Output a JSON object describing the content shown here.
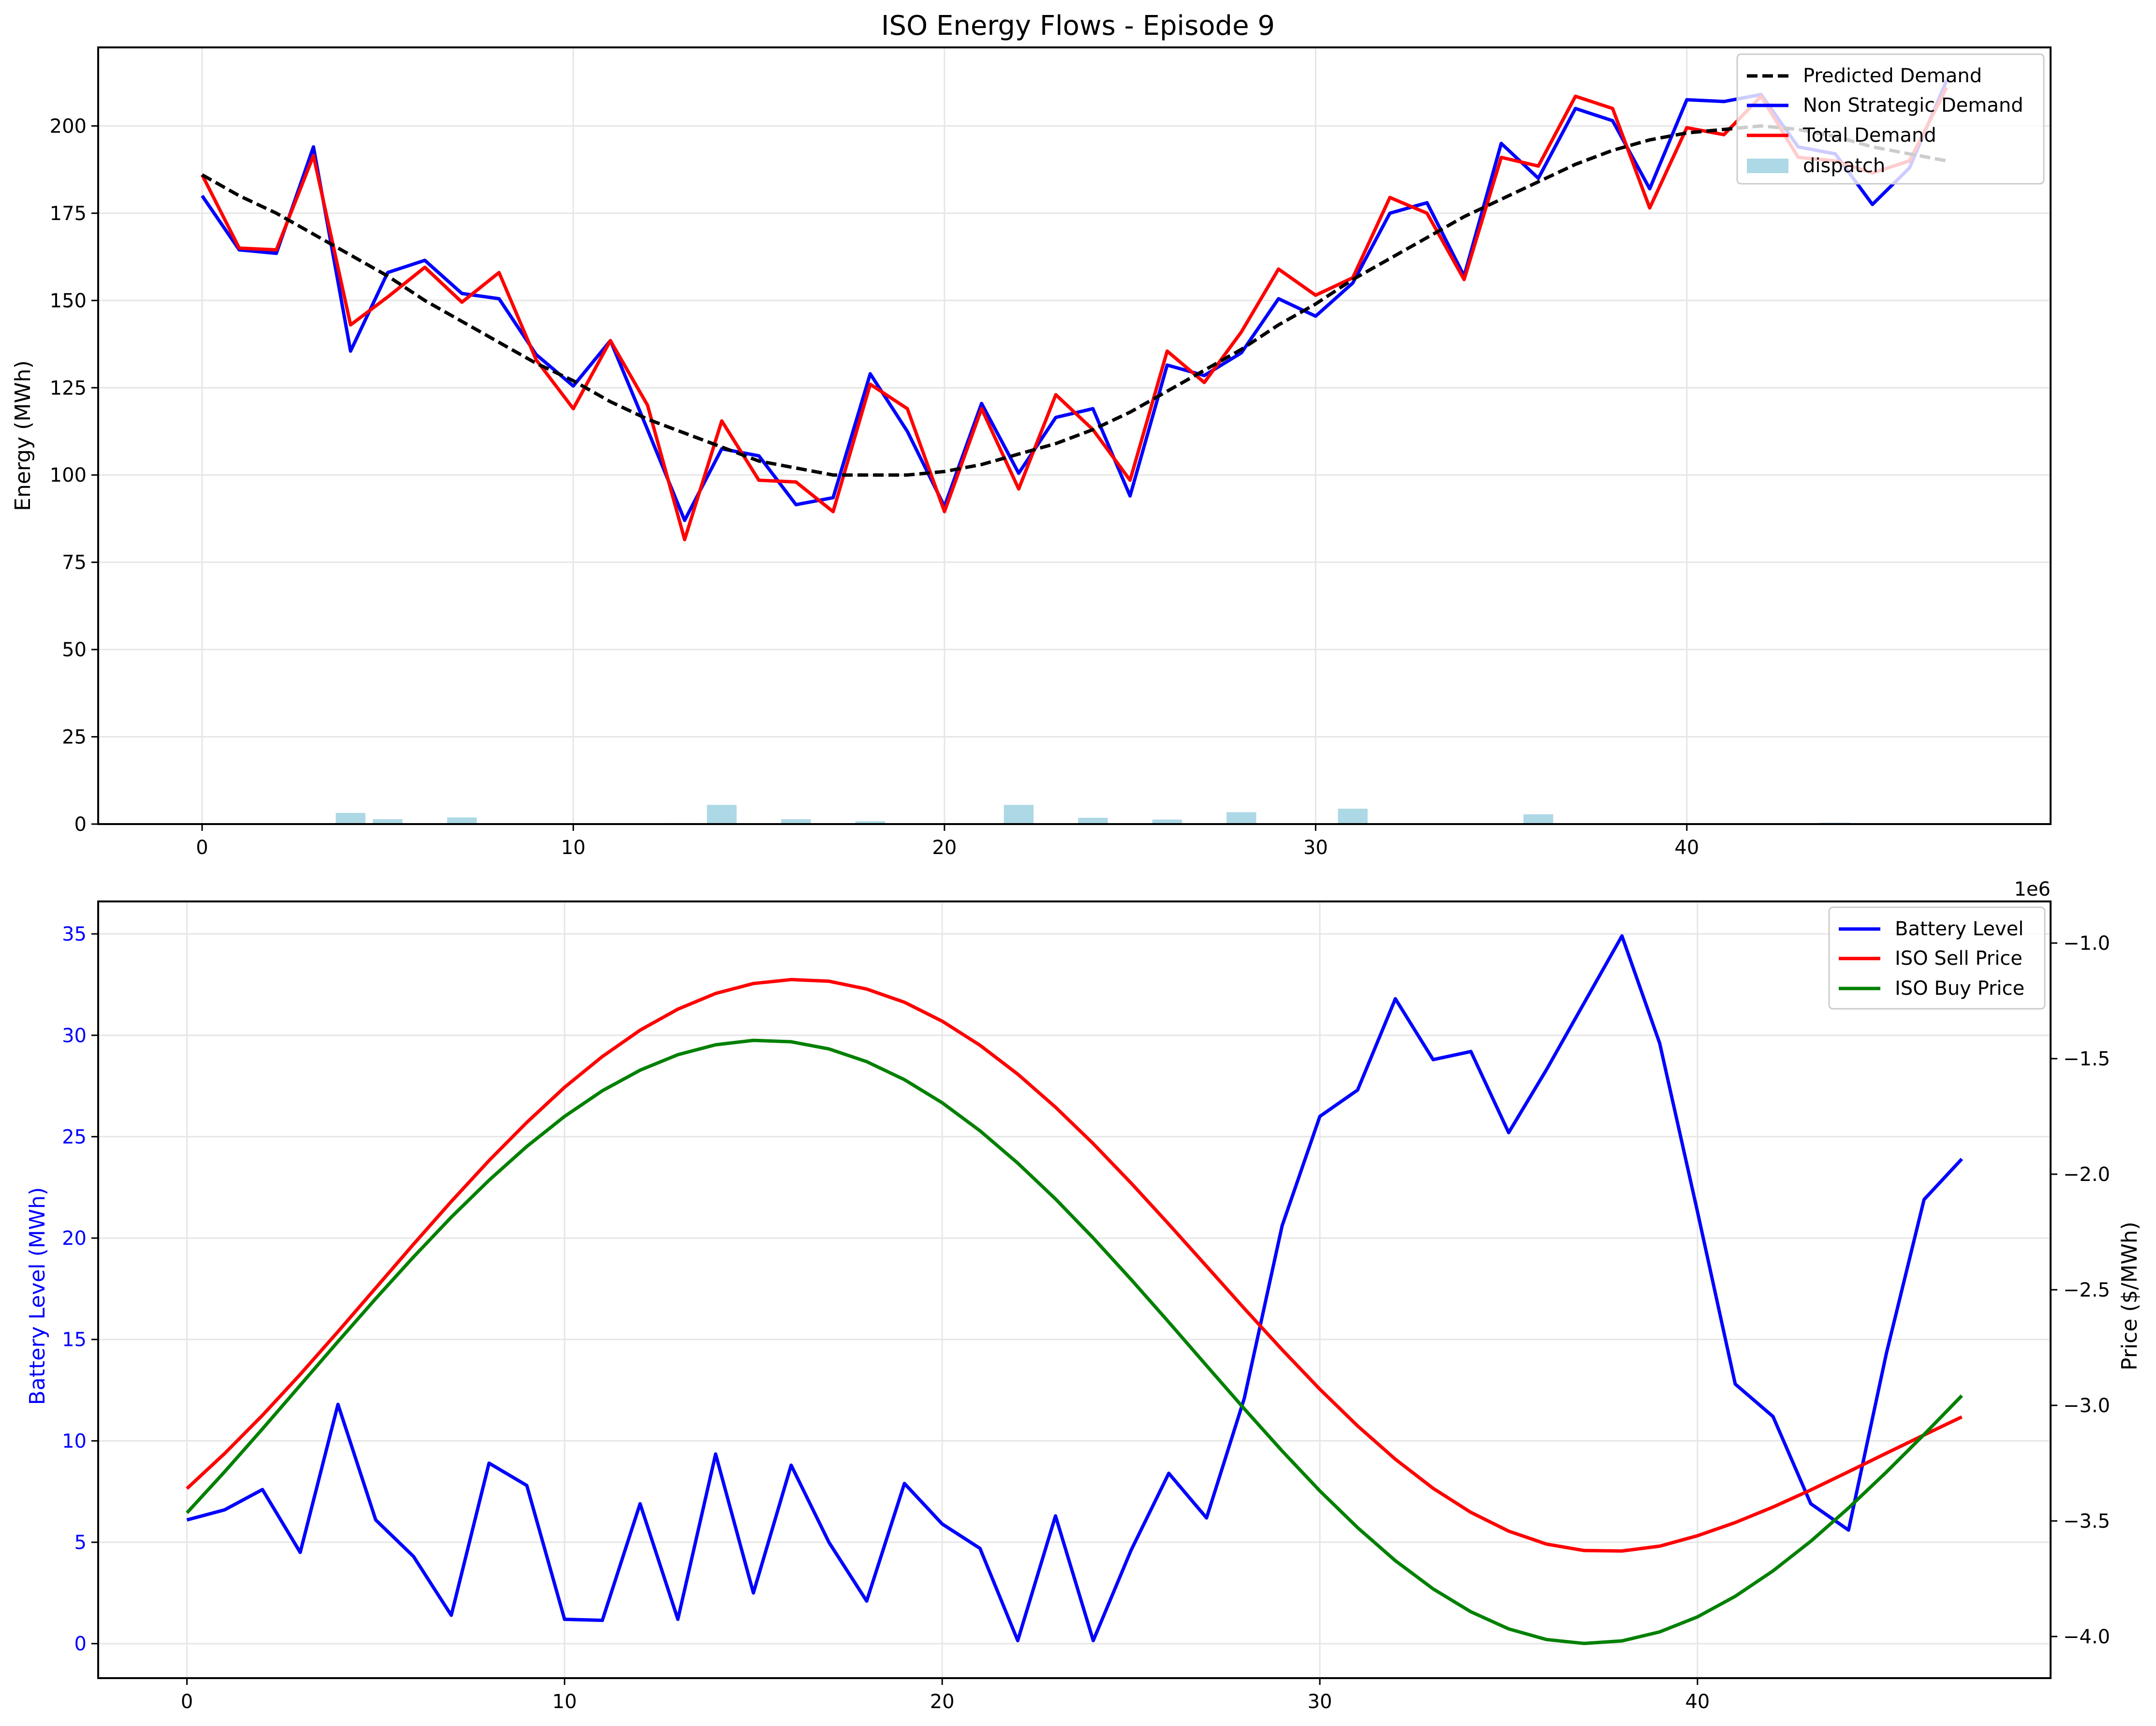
{
  "colors": {
    "predicted": "#000000",
    "non_strategic": "#0000ff",
    "total": "#ff0000",
    "dispatch": "#add8e6",
    "battery": "#0000ff",
    "sell": "#ff0000",
    "buy": "#008000",
    "grid": "#e6e6e6"
  },
  "chart_data": [
    {
      "type": "line",
      "title": "ISO Energy Flows - Episode 9",
      "xlabel": "",
      "ylabel": "Energy (MWh)",
      "xlim": [
        -2.8,
        49.8
      ],
      "ylim": [
        0,
        222.5
      ],
      "xticks": [
        0,
        10,
        20,
        30,
        40
      ],
      "yticks": [
        0,
        25,
        50,
        75,
        100,
        125,
        150,
        175,
        200
      ],
      "grid": true,
      "legend": {
        "position": "top-right",
        "entries": [
          "Predicted Demand",
          "Non Strategic Demand",
          "Total Demand",
          "dispatch"
        ]
      },
      "x": [
        0,
        1,
        2,
        3,
        4,
        5,
        6,
        7,
        8,
        9,
        10,
        11,
        12,
        13,
        14,
        15,
        16,
        17,
        18,
        19,
        20,
        21,
        22,
        23,
        24,
        25,
        26,
        27,
        28,
        29,
        30,
        31,
        32,
        33,
        34,
        35,
        36,
        37,
        38,
        39,
        40,
        41,
        42,
        43,
        44,
        45,
        46,
        47
      ],
      "series": [
        {
          "name": "Predicted Demand",
          "style": "dashed",
          "values": [
            186,
            180,
            175,
            169,
            163,
            157,
            150,
            144,
            138,
            132,
            127,
            121,
            116,
            112,
            108,
            104,
            102,
            100,
            100,
            100,
            101,
            103,
            106,
            109,
            113,
            118,
            124,
            130,
            136,
            143,
            149,
            156,
            162,
            168,
            174,
            179,
            184,
            189,
            193,
            196,
            198,
            199,
            200,
            199,
            197,
            194,
            192,
            190
          ]
        },
        {
          "name": "Non Strategic Demand",
          "style": "solid",
          "values": [
            180,
            164.5,
            163.5,
            194,
            135.5,
            158,
            161.5,
            152,
            150.5,
            134.5,
            125.5,
            138.5,
            113,
            87,
            107.5,
            105.5,
            91.5,
            93.5,
            129,
            112.5,
            91,
            120.5,
            100.5,
            116.5,
            119,
            94,
            131.5,
            128.5,
            135,
            150.5,
            145.5,
            155,
            175,
            178,
            157,
            195,
            185,
            205,
            201.5,
            182,
            207.5,
            207,
            209,
            194,
            192,
            177.5,
            188,
            213
          ]
        },
        {
          "name": "Total Demand",
          "style": "solid",
          "values": [
            186,
            165,
            164.5,
            191.5,
            143,
            151,
            159.5,
            149.5,
            158,
            133,
            119,
            138.5,
            120,
            81.5,
            115.5,
            98.5,
            98,
            89.5,
            126,
            119,
            89.5,
            119,
            96,
            123,
            113,
            98.5,
            135.5,
            126.5,
            141,
            159,
            151.5,
            156.5,
            179.5,
            175,
            156,
            191,
            188.5,
            208.5,
            205,
            176.5,
            199.5,
            197.5,
            208.5,
            191,
            190,
            186.5,
            190,
            211
          ]
        }
      ],
      "bars": {
        "name": "dispatch",
        "values": [
          0,
          0,
          0,
          0,
          3.2,
          1.4,
          0,
          1.9,
          0,
          0,
          0,
          0,
          0,
          0.3,
          5.5,
          0,
          1.4,
          0,
          0.8,
          0,
          0,
          0,
          5.5,
          0,
          1.8,
          0,
          1.3,
          0,
          3.4,
          0,
          0,
          4.4,
          0,
          0,
          0,
          0,
          2.8,
          0,
          0,
          0,
          0,
          0,
          0,
          0,
          0.4,
          0,
          0,
          0
        ]
      }
    },
    {
      "type": "line",
      "title": "",
      "xlabel": "",
      "ylabel": "Battery Level (MWh)",
      "y2label": "Price ($/MWh)",
      "y2_offset_label": "1e6",
      "xlim": [
        -2.35,
        49.35
      ],
      "ylim": [
        -1.7,
        36.6
      ],
      "y2lim": [
        -4.18,
        -0.82
      ],
      "xticks": [
        0,
        10,
        20,
        30,
        40
      ],
      "yticks": [
        0,
        5,
        10,
        15,
        20,
        25,
        30,
        35
      ],
      "y2ticks": [
        -4.0,
        -3.5,
        -3.0,
        -2.5,
        -2.0,
        -1.5,
        -1.0
      ],
      "grid": true,
      "legend": {
        "position": "top-right",
        "entries": [
          "Battery Level",
          "ISO Sell Price",
          "ISO Buy Price"
        ]
      },
      "x": [
        0,
        1,
        2,
        3,
        4,
        5,
        6,
        7,
        8,
        9,
        10,
        11,
        12,
        13,
        14,
        15,
        16,
        17,
        18,
        19,
        20,
        21,
        22,
        23,
        24,
        25,
        26,
        27,
        28,
        29,
        30,
        31,
        32,
        33,
        34,
        35,
        36,
        37,
        38,
        39,
        40,
        41,
        42,
        43,
        44,
        45,
        46,
        47
      ],
      "series": [
        {
          "name": "Battery Level",
          "axis": "left",
          "values": [
            6.1,
            6.6,
            7.6,
            4.5,
            11.8,
            6.1,
            4.3,
            1.4,
            8.9,
            7.8,
            1.2,
            1.15,
            6.9,
            1.2,
            9.35,
            2.5,
            8.8,
            5.0,
            2.1,
            7.9,
            5.9,
            4.7,
            0.15,
            6.3,
            0.15,
            4.6,
            8.4,
            6.2,
            12.1,
            20.6,
            26.0,
            27.3,
            31.8,
            28.8,
            29.2,
            25.2,
            28.3,
            31.6,
            34.9,
            29.6,
            21.3,
            12.8,
            11.2,
            6.9,
            5.6,
            14.3,
            21.9,
            23.9
          ]
        },
        {
          "name": "ISO Sell Price",
          "axis": "right",
          "values": [
            -3.36,
            -3.208,
            -3.043,
            -2.866,
            -2.681,
            -2.492,
            -2.303,
            -2.118,
            -1.941,
            -1.776,
            -1.624,
            -1.491,
            -1.377,
            -1.286,
            -1.218,
            -1.175,
            -1.158,
            -1.165,
            -1.199,
            -1.256,
            -1.338,
            -1.442,
            -1.567,
            -1.71,
            -1.868,
            -2.038,
            -2.216,
            -2.398,
            -2.581,
            -2.759,
            -2.93,
            -3.089,
            -3.233,
            -3.359,
            -3.463,
            -3.544,
            -3.6,
            -3.628,
            -3.63,
            -3.609,
            -3.564,
            -3.507,
            -3.44,
            -3.366,
            -3.287,
            -3.207,
            -3.128,
            -3.05
          ]
        },
        {
          "name": "ISO Buy Price",
          "axis": "right",
          "values": [
            -3.465,
            -3.287,
            -3.102,
            -2.913,
            -2.724,
            -2.538,
            -2.358,
            -2.186,
            -2.026,
            -1.88,
            -1.75,
            -1.639,
            -1.55,
            -1.483,
            -1.44,
            -1.421,
            -1.427,
            -1.458,
            -1.513,
            -1.591,
            -1.691,
            -1.812,
            -1.952,
            -2.107,
            -2.276,
            -2.455,
            -2.64,
            -2.828,
            -3.015,
            -3.197,
            -3.37,
            -3.529,
            -3.672,
            -3.794,
            -3.893,
            -3.967,
            -4.013,
            -4.03,
            -4.019,
            -3.98,
            -3.915,
            -3.826,
            -3.716,
            -3.588,
            -3.444,
            -3.289,
            -3.126,
            -2.958
          ]
        }
      ]
    }
  ]
}
